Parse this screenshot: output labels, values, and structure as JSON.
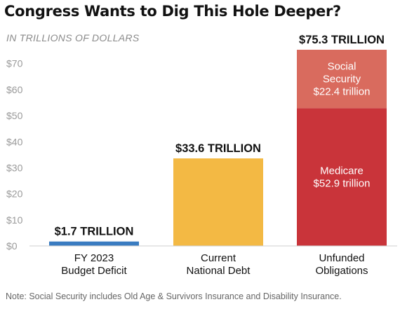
{
  "title": "Congress Wants to Dig This Hole Deeper?",
  "units_label": "IN TRILLIONS OF DOLLARS",
  "note": "Note: Social Security includes Old Age & Survivors Insurance and Disability Insurance.",
  "colors": {
    "deficit": "#3a7cc1",
    "debt": "#f3b944",
    "medicare": "#c9343a",
    "social_security": "#d96b5e",
    "axis_text": "#9a9a9a",
    "grid": "#e4e4e4"
  },
  "chart_data": {
    "type": "bar",
    "ylim": [
      0,
      75.3
    ],
    "yticks": [
      0,
      10,
      20,
      30,
      40,
      50,
      60,
      70
    ],
    "ytick_labels": [
      "$0",
      "$10",
      "$20",
      "$30",
      "$40",
      "$50",
      "$60",
      "$70"
    ],
    "grid": false,
    "categories": [
      {
        "label_lines": [
          "FY 2023",
          "Budget Deficit"
        ],
        "total_label": "$1.7 TRILLION",
        "value": 1.7
      },
      {
        "label_lines": [
          "Current",
          "National Debt"
        ],
        "total_label": "$33.6 TRILLION",
        "value": 33.6
      },
      {
        "label_lines": [
          "Unfunded",
          "Obligations"
        ],
        "total_label": "$75.3 TRILLION",
        "value": 75.3
      }
    ],
    "bars": [
      {
        "category": 0,
        "segments": [
          {
            "name": "",
            "value": 1.7,
            "color_key": "deficit",
            "label_lines": []
          }
        ]
      },
      {
        "category": 1,
        "segments": [
          {
            "name": "",
            "value": 33.6,
            "color_key": "debt",
            "label_lines": []
          }
        ]
      },
      {
        "category": 2,
        "segments": [
          {
            "name": "Medicare",
            "value": 52.9,
            "color_key": "medicare",
            "label_lines": [
              "Medicare",
              "$52.9 trillion"
            ]
          },
          {
            "name": "Social Security",
            "value": 22.4,
            "color_key": "social_security",
            "label_lines": [
              "Social",
              "Security",
              "$22.4 trillion"
            ]
          }
        ]
      }
    ]
  }
}
